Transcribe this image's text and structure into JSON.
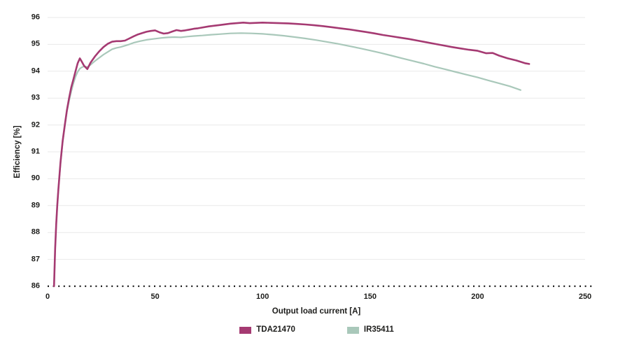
{
  "chart_data": {
    "type": "line",
    "title": "",
    "xlabel": "Output load current [A]",
    "ylabel": "Efficiency [%]",
    "xlim": [
      0,
      250
    ],
    "ylim": [
      86,
      96
    ],
    "x_ticks": [
      0,
      50,
      100,
      150,
      200,
      250
    ],
    "y_ticks": [
      86,
      87,
      88,
      89,
      90,
      91,
      92,
      93,
      94,
      95,
      96
    ],
    "grid": "horizontal-only",
    "grid_color": "#e9e9e9",
    "baseline_style": "dotted",
    "baseline_color": "#1a1a1a",
    "text_color": "#1d1d1b",
    "legend_position": "bottom-center",
    "series": [
      {
        "name": "TDA21470",
        "color": "#a53a72",
        "line_width": 2.6,
        "points": [
          [
            3,
            86.0
          ],
          [
            3.5,
            87.4
          ],
          [
            4,
            88.3
          ],
          [
            4.5,
            89.0
          ],
          [
            5,
            89.6
          ],
          [
            6,
            90.6
          ],
          [
            7,
            91.4
          ],
          [
            8,
            92.0
          ],
          [
            9,
            92.55
          ],
          [
            10,
            93.0
          ],
          [
            11,
            93.4
          ],
          [
            12,
            93.7
          ],
          [
            13,
            94.0
          ],
          [
            14,
            94.3
          ],
          [
            15,
            94.48
          ],
          [
            16,
            94.34
          ],
          [
            17,
            94.2
          ],
          [
            18.5,
            94.08
          ],
          [
            20,
            94.32
          ],
          [
            22,
            94.55
          ],
          [
            24,
            94.74
          ],
          [
            26,
            94.9
          ],
          [
            28,
            95.02
          ],
          [
            30,
            95.1
          ],
          [
            32,
            95.12
          ],
          [
            34,
            95.12
          ],
          [
            36,
            95.14
          ],
          [
            38,
            95.22
          ],
          [
            40,
            95.3
          ],
          [
            42,
            95.37
          ],
          [
            44,
            95.42
          ],
          [
            46,
            95.47
          ],
          [
            48,
            95.5
          ],
          [
            50,
            95.52
          ],
          [
            52,
            95.45
          ],
          [
            54,
            95.4
          ],
          [
            56,
            95.42
          ],
          [
            58,
            95.48
          ],
          [
            60,
            95.53
          ],
          [
            62,
            95.5
          ],
          [
            64,
            95.52
          ],
          [
            66,
            95.55
          ],
          [
            68,
            95.58
          ],
          [
            70,
            95.6
          ],
          [
            75,
            95.67
          ],
          [
            80,
            95.72
          ],
          [
            85,
            95.77
          ],
          [
            88,
            95.79
          ],
          [
            91,
            95.81
          ],
          [
            94,
            95.79
          ],
          [
            97,
            95.8
          ],
          [
            100,
            95.81
          ],
          [
            104,
            95.8
          ],
          [
            108,
            95.79
          ],
          [
            112,
            95.78
          ],
          [
            116,
            95.76
          ],
          [
            120,
            95.74
          ],
          [
            124,
            95.71
          ],
          [
            128,
            95.68
          ],
          [
            132,
            95.64
          ],
          [
            136,
            95.6
          ],
          [
            140,
            95.56
          ],
          [
            144,
            95.51
          ],
          [
            148,
            95.46
          ],
          [
            152,
            95.41
          ],
          [
            156,
            95.35
          ],
          [
            160,
            95.3
          ],
          [
            164,
            95.25
          ],
          [
            168,
            95.2
          ],
          [
            172,
            95.14
          ],
          [
            176,
            95.08
          ],
          [
            180,
            95.02
          ],
          [
            184,
            94.96
          ],
          [
            188,
            94.9
          ],
          [
            192,
            94.85
          ],
          [
            196,
            94.8
          ],
          [
            200,
            94.76
          ],
          [
            204,
            94.67
          ],
          [
            207,
            94.68
          ],
          [
            210,
            94.58
          ],
          [
            214,
            94.48
          ],
          [
            218,
            94.4
          ],
          [
            222,
            94.3
          ],
          [
            224,
            94.27
          ]
        ]
      },
      {
        "name": "IR35411",
        "color": "#a9c8ba",
        "line_width": 2.2,
        "points": [
          [
            3,
            86.0
          ],
          [
            3.5,
            87.4
          ],
          [
            4,
            88.3
          ],
          [
            4.5,
            89.0
          ],
          [
            5,
            89.6
          ],
          [
            6,
            90.55
          ],
          [
            7,
            91.35
          ],
          [
            8,
            91.95
          ],
          [
            9,
            92.5
          ],
          [
            10,
            92.9
          ],
          [
            11,
            93.25
          ],
          [
            12,
            93.55
          ],
          [
            13,
            93.8
          ],
          [
            14,
            93.98
          ],
          [
            15,
            94.1
          ],
          [
            16,
            94.15
          ],
          [
            17,
            94.18
          ],
          [
            18.5,
            94.16
          ],
          [
            20,
            94.24
          ],
          [
            22,
            94.38
          ],
          [
            24,
            94.5
          ],
          [
            26,
            94.62
          ],
          [
            28,
            94.72
          ],
          [
            30,
            94.82
          ],
          [
            32,
            94.87
          ],
          [
            34,
            94.9
          ],
          [
            36,
            94.95
          ],
          [
            38,
            95.0
          ],
          [
            40,
            95.06
          ],
          [
            43,
            95.12
          ],
          [
            46,
            95.17
          ],
          [
            50,
            95.21
          ],
          [
            53,
            95.24
          ],
          [
            56,
            95.26
          ],
          [
            59,
            95.27
          ],
          [
            62,
            95.26
          ],
          [
            65,
            95.29
          ],
          [
            68,
            95.31
          ],
          [
            72,
            95.33
          ],
          [
            76,
            95.36
          ],
          [
            80,
            95.38
          ],
          [
            85,
            95.41
          ],
          [
            90,
            95.42
          ],
          [
            95,
            95.41
          ],
          [
            100,
            95.39
          ],
          [
            105,
            95.36
          ],
          [
            110,
            95.32
          ],
          [
            115,
            95.27
          ],
          [
            120,
            95.22
          ],
          [
            125,
            95.16
          ],
          [
            130,
            95.09
          ],
          [
            135,
            95.02
          ],
          [
            140,
            94.94
          ],
          [
            145,
            94.86
          ],
          [
            150,
            94.77
          ],
          [
            155,
            94.68
          ],
          [
            160,
            94.58
          ],
          [
            165,
            94.48
          ],
          [
            170,
            94.38
          ],
          [
            175,
            94.28
          ],
          [
            180,
            94.17
          ],
          [
            185,
            94.07
          ],
          [
            190,
            93.97
          ],
          [
            195,
            93.87
          ],
          [
            200,
            93.77
          ],
          [
            205,
            93.66
          ],
          [
            210,
            93.55
          ],
          [
            215,
            93.44
          ],
          [
            220,
            93.3
          ]
        ]
      }
    ]
  }
}
